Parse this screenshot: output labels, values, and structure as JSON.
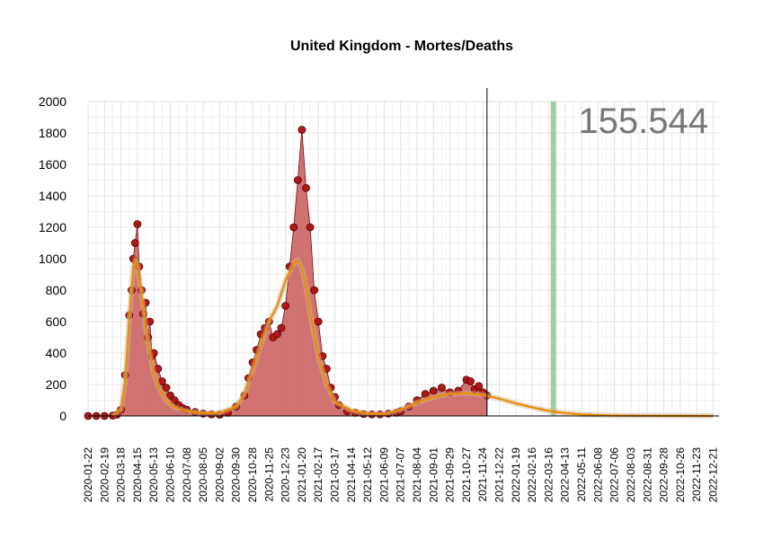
{
  "chart_data": {
    "type": "bar",
    "title": "United Kingdom - Mortes/Deaths",
    "total_label": "155.544",
    "xlabel": "",
    "ylabel": "",
    "ylim": [
      0,
      2000
    ],
    "yticks": [
      "0",
      "200",
      "400",
      "600",
      "800",
      "1000",
      "1200",
      "1400",
      "1600",
      "1800",
      "2000"
    ],
    "xlim": [
      "2020-01-22",
      "2022-12-31"
    ],
    "xticks": [
      "2020-01-22",
      "2020-02-19",
      "2020-03-18",
      "2020-04-15",
      "2020-05-13",
      "2020-06-10",
      "2020-07-08",
      "2020-08-05",
      "2020-09-02",
      "2020-09-30",
      "2020-10-28",
      "2020-11-25",
      "2020-12-23",
      "2021-01-20",
      "2021-02-17",
      "2021-03-17",
      "2021-04-14",
      "2021-05-12",
      "2021-06-09",
      "2021-07-07",
      "2021-08-04",
      "2021-09-01",
      "2021-09-29",
      "2021-10-27",
      "2021-11-24",
      "2021-12-22",
      "2022-01-19",
      "2022-02-16",
      "2022-03-16",
      "2022-04-13",
      "2022-05-11",
      "2022-06-08",
      "2022-07-06",
      "2022-08-03",
      "2022-08-31",
      "2022-09-28",
      "2022-10-26",
      "2022-11-23",
      "2022-12-21"
    ],
    "grid": true,
    "today_marker": "2021-12-01",
    "highlight_band": "2022-03-24",
    "observed_daily": {
      "name": "Mortes/Deaths",
      "points": [
        [
          "2020-01-22",
          0
        ],
        [
          "2020-02-05",
          0
        ],
        [
          "2020-02-19",
          0
        ],
        [
          "2020-03-04",
          2
        ],
        [
          "2020-03-11",
          8
        ],
        [
          "2020-03-18",
          40
        ],
        [
          "2020-03-25",
          260
        ],
        [
          "2020-04-01",
          640
        ],
        [
          "2020-04-05",
          800
        ],
        [
          "2020-04-08",
          1000
        ],
        [
          "2020-04-11",
          1100
        ],
        [
          "2020-04-15",
          1220
        ],
        [
          "2020-04-18",
          950
        ],
        [
          "2020-04-22",
          800
        ],
        [
          "2020-04-25",
          650
        ],
        [
          "2020-04-29",
          720
        ],
        [
          "2020-05-03",
          500
        ],
        [
          "2020-05-06",
          600
        ],
        [
          "2020-05-10",
          380
        ],
        [
          "2020-05-13",
          400
        ],
        [
          "2020-05-20",
          300
        ],
        [
          "2020-05-27",
          220
        ],
        [
          "2020-06-03",
          180
        ],
        [
          "2020-06-10",
          130
        ],
        [
          "2020-06-17",
          100
        ],
        [
          "2020-06-24",
          70
        ],
        [
          "2020-07-01",
          50
        ],
        [
          "2020-07-08",
          40
        ],
        [
          "2020-07-22",
          25
        ],
        [
          "2020-08-05",
          15
        ],
        [
          "2020-08-19",
          10
        ],
        [
          "2020-09-02",
          8
        ],
        [
          "2020-09-16",
          20
        ],
        [
          "2020-09-30",
          60
        ],
        [
          "2020-10-14",
          130
        ],
        [
          "2020-10-21",
          240
        ],
        [
          "2020-10-28",
          340
        ],
        [
          "2020-11-04",
          420
        ],
        [
          "2020-11-11",
          520
        ],
        [
          "2020-11-18",
          560
        ],
        [
          "2020-11-25",
          600
        ],
        [
          "2020-12-02",
          500
        ],
        [
          "2020-12-09",
          520
        ],
        [
          "2020-12-16",
          560
        ],
        [
          "2020-12-23",
          700
        ],
        [
          "2020-12-30",
          950
        ],
        [
          "2021-01-06",
          1200
        ],
        [
          "2021-01-13",
          1500
        ],
        [
          "2021-01-20",
          1820
        ],
        [
          "2021-01-27",
          1450
        ],
        [
          "2021-02-03",
          1200
        ],
        [
          "2021-02-10",
          800
        ],
        [
          "2021-02-17",
          600
        ],
        [
          "2021-02-24",
          380
        ],
        [
          "2021-03-03",
          300
        ],
        [
          "2021-03-10",
          180
        ],
        [
          "2021-03-17",
          120
        ],
        [
          "2021-03-24",
          70
        ],
        [
          "2021-04-07",
          30
        ],
        [
          "2021-04-21",
          20
        ],
        [
          "2021-05-05",
          12
        ],
        [
          "2021-05-19",
          10
        ],
        [
          "2021-06-02",
          10
        ],
        [
          "2021-06-16",
          15
        ],
        [
          "2021-06-30",
          20
        ],
        [
          "2021-07-07",
          30
        ],
        [
          "2021-07-21",
          60
        ],
        [
          "2021-08-04",
          100
        ],
        [
          "2021-08-18",
          140
        ],
        [
          "2021-09-01",
          160
        ],
        [
          "2021-09-15",
          180
        ],
        [
          "2021-09-29",
          150
        ],
        [
          "2021-10-13",
          160
        ],
        [
          "2021-10-27",
          230
        ],
        [
          "2021-11-03",
          220
        ],
        [
          "2021-11-10",
          170
        ],
        [
          "2021-11-17",
          190
        ],
        [
          "2021-11-24",
          150
        ],
        [
          "2021-12-01",
          130
        ]
      ]
    },
    "trend": {
      "name": "trend",
      "points": [
        [
          "2020-03-04",
          0
        ],
        [
          "2020-03-18",
          40
        ],
        [
          "2020-03-25",
          220
        ],
        [
          "2020-04-01",
          620
        ],
        [
          "2020-04-08",
          950
        ],
        [
          "2020-04-12",
          990
        ],
        [
          "2020-04-15",
          960
        ],
        [
          "2020-04-22",
          780
        ],
        [
          "2020-04-29",
          560
        ],
        [
          "2020-05-06",
          400
        ],
        [
          "2020-05-13",
          270
        ],
        [
          "2020-05-20",
          190
        ],
        [
          "2020-06-03",
          100
        ],
        [
          "2020-06-17",
          55
        ],
        [
          "2020-07-08",
          30
        ],
        [
          "2020-08-05",
          18
        ],
        [
          "2020-09-02",
          20
        ],
        [
          "2020-09-30",
          60
        ],
        [
          "2020-10-14",
          140
        ],
        [
          "2020-10-28",
          290
        ],
        [
          "2020-11-11",
          450
        ],
        [
          "2020-11-25",
          600
        ],
        [
          "2020-12-09",
          700
        ],
        [
          "2020-12-23",
          860
        ],
        [
          "2021-01-06",
          970
        ],
        [
          "2021-01-13",
          990
        ],
        [
          "2021-01-20",
          940
        ],
        [
          "2021-01-27",
          820
        ],
        [
          "2021-02-03",
          650
        ],
        [
          "2021-02-17",
          380
        ],
        [
          "2021-03-03",
          200
        ],
        [
          "2021-03-17",
          90
        ],
        [
          "2021-04-14",
          35
        ],
        [
          "2021-05-12",
          15
        ],
        [
          "2021-06-09",
          12
        ],
        [
          "2021-07-07",
          40
        ],
        [
          "2021-08-04",
          85
        ],
        [
          "2021-09-01",
          120
        ],
        [
          "2021-09-29",
          140
        ],
        [
          "2021-10-27",
          145
        ],
        [
          "2021-11-24",
          135
        ],
        [
          "2021-12-22",
          110
        ],
        [
          "2022-01-19",
          80
        ],
        [
          "2022-02-16",
          55
        ],
        [
          "2022-03-16",
          32
        ],
        [
          "2022-04-13",
          18
        ],
        [
          "2022-05-11",
          10
        ],
        [
          "2022-06-08",
          5
        ],
        [
          "2022-07-06",
          3
        ],
        [
          "2022-08-03",
          2
        ],
        [
          "2022-09-28",
          1
        ],
        [
          "2022-12-21",
          0
        ]
      ]
    },
    "colors": {
      "bars": "#d07070",
      "points_fill": "#b01818",
      "points_stroke": "#5a0000",
      "trend": "#f08c00",
      "band": "#8fbf8f",
      "total": "#777777"
    }
  }
}
